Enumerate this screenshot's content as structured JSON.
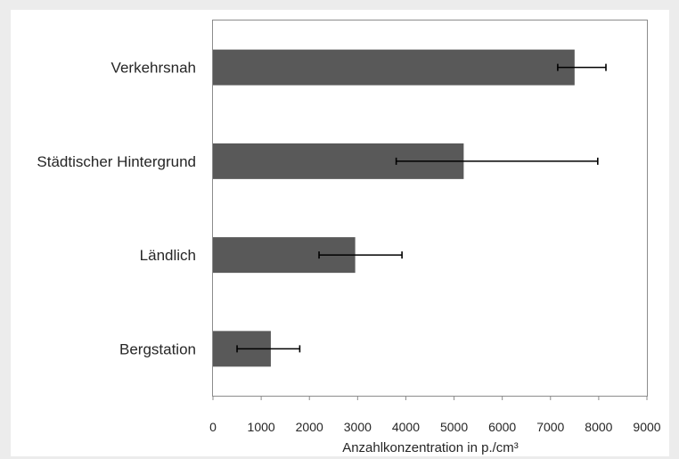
{
  "chart_data": {
    "type": "bar",
    "orientation": "horizontal",
    "categories": [
      "Verkehrsnah",
      "Städtischer Hintergrund",
      "Ländlich",
      "Bergstation"
    ],
    "values": [
      7500,
      5200,
      2950,
      1200
    ],
    "error_low": [
      7150,
      3800,
      2200,
      500
    ],
    "error_high": [
      8150,
      7980,
      3920,
      1800
    ],
    "xlabel": "Anzahlkonzentration in p./cm³",
    "ylabel": "",
    "title": "",
    "xlim": [
      0,
      9000
    ],
    "xticks": [
      "0",
      "1000",
      "2000",
      "3000",
      "4000",
      "5000",
      "6000",
      "7000",
      "8000",
      "9000"
    ],
    "bar_color": "#595959",
    "grid": false,
    "legend": "none"
  }
}
